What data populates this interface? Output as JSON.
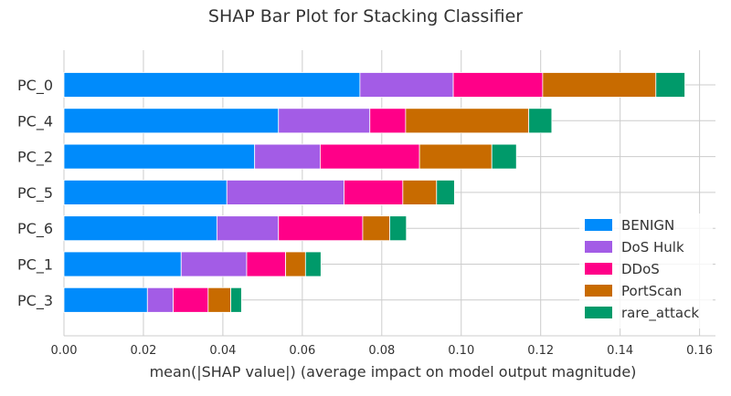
{
  "chart_data": {
    "type": "bar",
    "orientation": "horizontal",
    "stacked": true,
    "title": "SHAP Bar Plot for Stacking Classifier",
    "xlabel": "mean(|SHAP value|) (average impact on model output magnitude)",
    "ylabel": "",
    "xlim": [
      0,
      0.164
    ],
    "xticks": [
      0.0,
      0.02,
      0.04,
      0.06,
      0.08,
      0.1,
      0.12,
      0.14,
      0.16
    ],
    "xtick_labels": [
      "0.00",
      "0.02",
      "0.04",
      "0.06",
      "0.08",
      "0.10",
      "0.12",
      "0.14",
      "0.16"
    ],
    "grid": true,
    "legend_position": "bottom-right",
    "categories": [
      "PC_0",
      "PC_4",
      "PC_2",
      "PC_5",
      "PC_6",
      "PC_1",
      "PC_3"
    ],
    "series": [
      {
        "name": "BENIGN",
        "color": "#008bfb",
        "values": [
          0.0745,
          0.054,
          0.048,
          0.041,
          0.0385,
          0.0295,
          0.021
        ]
      },
      {
        "name": "DoS Hulk",
        "color": "#a35ce6",
        "values": [
          0.0235,
          0.023,
          0.0165,
          0.0295,
          0.0155,
          0.0165,
          0.0065
        ]
      },
      {
        "name": "DDoS",
        "color": "#ff0088",
        "values": [
          0.0225,
          0.009,
          0.025,
          0.0148,
          0.0212,
          0.0098,
          0.0088
        ]
      },
      {
        "name": "PortScan",
        "color": "#c86b00",
        "values": [
          0.0285,
          0.031,
          0.0182,
          0.0085,
          0.0068,
          0.005,
          0.0057
        ]
      },
      {
        "name": "rare_attack",
        "color": "#009a6a",
        "values": [
          0.0073,
          0.0058,
          0.0062,
          0.0045,
          0.0042,
          0.0039,
          0.0027
        ]
      }
    ]
  }
}
